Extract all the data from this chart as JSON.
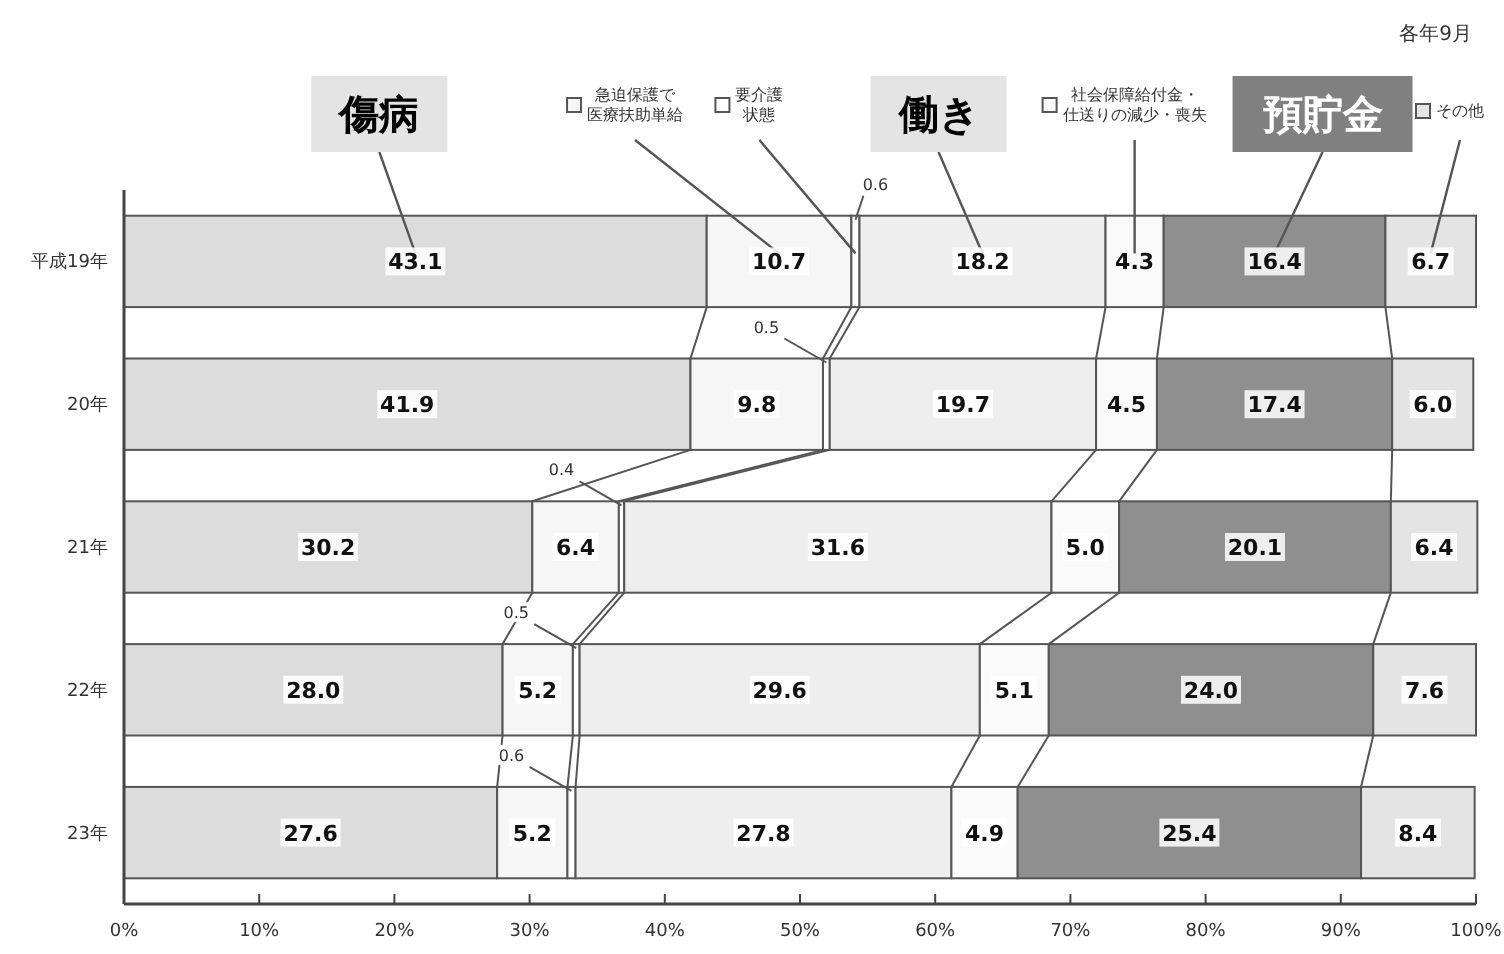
{
  "chart_data": {
    "type": "bar",
    "orientation": "horizontal",
    "stacked": true,
    "categories": [
      "平成19年",
      "20年",
      "21年",
      "22年",
      "23年"
    ],
    "series": [
      {
        "name": "傷病",
        "color": "#dcdcdc",
        "values": [
          43.1,
          41.9,
          30.2,
          28.0,
          27.6
        ],
        "value_labels": [
          "43.1",
          "41.9",
          "30.2",
          "28.0",
          "27.6"
        ]
      },
      {
        "name": "急迫保護で医療扶助単給",
        "color": "#f6f6f6",
        "values": [
          10.7,
          9.8,
          6.4,
          5.2,
          5.2
        ],
        "value_labels": [
          "10.7",
          "9.8",
          "6.4",
          "5.2",
          "5.2"
        ]
      },
      {
        "name": "要介護状態",
        "color": "#ffffff",
        "values": [
          0.6,
          0.5,
          0.4,
          0.5,
          0.6
        ],
        "value_labels": [
          "0.6",
          "0.5",
          "0.4",
          "0.5",
          "0.6"
        ]
      },
      {
        "name": "働き",
        "color": "#eeeeee",
        "values": [
          18.2,
          19.7,
          31.6,
          29.6,
          27.8
        ],
        "value_labels": [
          "18.2",
          "19.7",
          "31.6",
          "29.6",
          "27.8"
        ]
      },
      {
        "name": "社会保障給付金・仕送りの減少・喪失",
        "color": "#fafafa",
        "values": [
          4.3,
          4.5,
          5.0,
          5.1,
          4.9
        ],
        "value_labels": [
          "4.3",
          "4.5",
          "5.0",
          "5.1",
          "4.9"
        ]
      },
      {
        "name": "預貯金",
        "color": "#8f8f8f",
        "values": [
          16.4,
          17.4,
          20.1,
          24.0,
          25.4
        ],
        "value_labels": [
          "16.4",
          "17.4",
          "20.1",
          "24.0",
          "25.4"
        ]
      },
      {
        "name": "その他",
        "color": "#e4e4e4",
        "values": [
          6.7,
          6.0,
          6.4,
          7.6,
          8.4
        ],
        "value_labels": [
          "6.7",
          "6.0",
          "6.4",
          "7.6",
          "8.4"
        ]
      }
    ],
    "xlim": [
      0,
      100
    ],
    "xticks": [
      {
        "value": 0,
        "label": "0%"
      },
      {
        "value": 10,
        "label": "10%"
      },
      {
        "value": 20,
        "label": "20%"
      },
      {
        "value": 30,
        "label": "30%"
      },
      {
        "value": 40,
        "label": "40%"
      },
      {
        "value": 50,
        "label": "50%"
      },
      {
        "value": 60,
        "label": "60%"
      },
      {
        "value": 70,
        "label": "70%"
      },
      {
        "value": 80,
        "label": "80%"
      },
      {
        "value": 90,
        "label": "90%"
      },
      {
        "value": 100,
        "label": "100%"
      }
    ],
    "legend": "top",
    "annotations": [
      "各年9月"
    ]
  }
}
